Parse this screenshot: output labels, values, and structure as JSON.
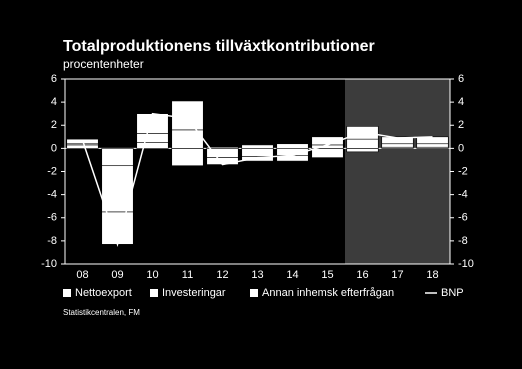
{
  "chart_data": {
    "type": "bar",
    "stacked": true,
    "title": "Totalproduktionens tillväxtkontributioner",
    "subtitle": "procentenheter",
    "source": "Statistikcentralen, FM",
    "categories": [
      "08",
      "09",
      "10",
      "11",
      "12",
      "13",
      "14",
      "15",
      "16",
      "17",
      "18"
    ],
    "series": [
      {
        "name": "Nettoexport",
        "color": "#ffffff",
        "values": [
          0.3,
          -1.5,
          0.5,
          -1.5,
          0.1,
          0.3,
          0.4,
          -0.8,
          -0.3,
          0.1,
          0.1
        ]
      },
      {
        "name": "Investeringar",
        "color": "#ffffff",
        "values": [
          0.1,
          -4.0,
          0.8,
          1.6,
          -0.8,
          -0.7,
          -0.6,
          0.3,
          0.8,
          0.3,
          0.3
        ]
      },
      {
        "name": "Annan inhemsk efterfrågan",
        "color": "#ffffff",
        "values": [
          0.4,
          -2.8,
          1.7,
          2.5,
          -0.6,
          -0.4,
          -0.5,
          0.7,
          1.1,
          0.6,
          0.6
        ]
      },
      {
        "name": "BNP",
        "type": "line",
        "color": "#ffffff",
        "values": [
          0.7,
          -8.3,
          3.0,
          2.6,
          -1.4,
          -0.8,
          -0.6,
          0.3,
          1.4,
          0.9,
          1.0
        ]
      }
    ],
    "ylim": [
      -10,
      6
    ],
    "yticks": [
      -10,
      -8,
      -6,
      -4,
      -2,
      0,
      2,
      4,
      6
    ],
    "y2lim": [
      -10,
      6
    ],
    "y2ticks": [
      -10,
      -8,
      -6,
      -4,
      -2,
      0,
      2,
      4,
      6
    ]
  }
}
